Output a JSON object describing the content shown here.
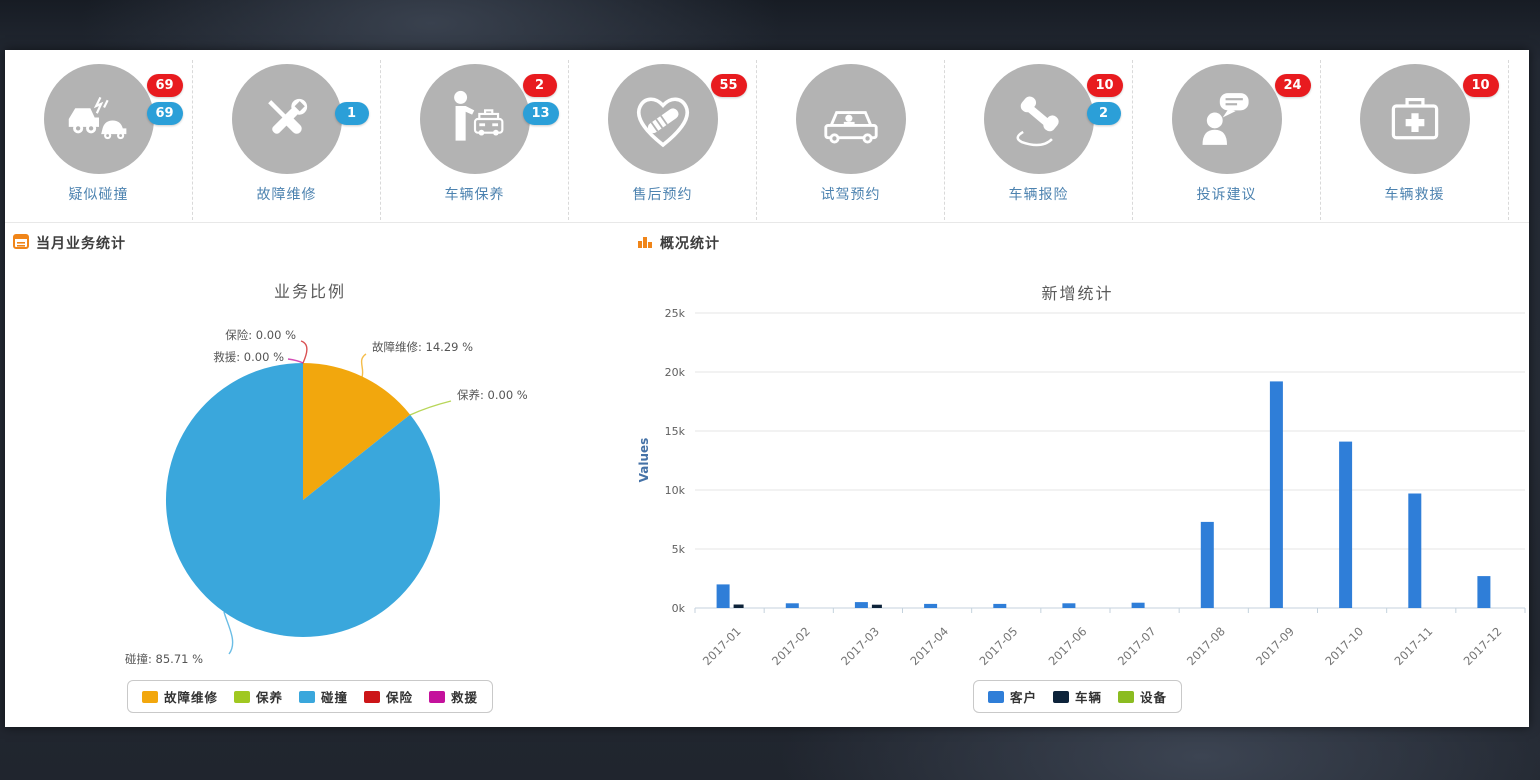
{
  "header_icons": {
    "badge_colors": {
      "red": "#e81b1f",
      "blue": "#2b9fd8"
    },
    "items": [
      {
        "name": "suspected-collision",
        "icon": "car-crash-icon",
        "label": "疑似碰撞",
        "badges": [
          {
            "value": "69",
            "type": "red",
            "row": 0
          },
          {
            "value": "69",
            "type": "blue",
            "row": 1
          }
        ]
      },
      {
        "name": "fault-repair",
        "icon": "wrench-screwdriver-icon",
        "label": "故障维修",
        "badges": [
          {
            "value": "1",
            "type": "blue",
            "row": 1
          }
        ]
      },
      {
        "name": "vehicle-maintenance",
        "icon": "person-taxi-icon",
        "label": "车辆保养",
        "badges": [
          {
            "value": "2",
            "type": "red",
            "row": 0
          },
          {
            "value": "13",
            "type": "blue",
            "row": 1
          }
        ]
      },
      {
        "name": "aftersales-appointment",
        "icon": "handshake-heart-icon",
        "label": "售后预约",
        "badges": [
          {
            "value": "55",
            "type": "red",
            "row": 0
          }
        ]
      },
      {
        "name": "testdrive-appointment",
        "icon": "car-driver-icon",
        "label": "试驾预约",
        "badges": []
      },
      {
        "name": "vehicle-insurance-report",
        "icon": "phone-handset-icon",
        "label": "车辆报险",
        "badges": [
          {
            "value": "10",
            "type": "red",
            "row": 0
          },
          {
            "value": "2",
            "type": "blue",
            "row": 1
          }
        ]
      },
      {
        "name": "complaints-suggestions",
        "icon": "person-speech-bubble-icon",
        "label": "投诉建议",
        "badges": [
          {
            "value": "24",
            "type": "red",
            "row": 0
          }
        ]
      },
      {
        "name": "vehicle-rescue",
        "icon": "first-aid-kit-icon",
        "label": "车辆救援",
        "badges": [
          {
            "value": "10",
            "type": "red",
            "row": 0
          }
        ]
      }
    ]
  },
  "left_panel": {
    "title": "当月业务统计"
  },
  "right_panel": {
    "title": "概况统计"
  },
  "chart_data": [
    {
      "type": "pie",
      "title": "业务比例",
      "legend_position": "bottom",
      "slices": [
        {
          "label": "故障维修",
          "value": 14.29,
          "color": "#f2a70d",
          "display": "故障维修: 14.29 %"
        },
        {
          "label": "保养",
          "value": 0.0,
          "color": "#a0c821",
          "display": "保养: 0.00 %"
        },
        {
          "label": "碰撞",
          "value": 85.71,
          "color": "#3aa7dc",
          "display": "碰撞: 85.71 %"
        },
        {
          "label": "保险",
          "value": 0.0,
          "color": "#cc1518",
          "display": "保险: 0.00 %"
        },
        {
          "label": "救援",
          "value": 0.0,
          "color": "#c4119c",
          "display": "救援: 0.00 %"
        }
      ],
      "legend": [
        "故障维修",
        "保养",
        "碰撞",
        "保险",
        "救援"
      ]
    },
    {
      "type": "bar",
      "title": "新增统计",
      "ylabel": "Values",
      "ylim": [
        0,
        25000
      ],
      "ytick_labels": [
        "0k",
        "5k",
        "10k",
        "15k",
        "20k",
        "25k"
      ],
      "grid": true,
      "legend_position": "bottom",
      "categories": [
        "2017-01",
        "2017-02",
        "2017-03",
        "2017-04",
        "2017-05",
        "2017-06",
        "2017-07",
        "2017-08",
        "2017-09",
        "2017-10",
        "2017-11",
        "2017-12"
      ],
      "series": [
        {
          "name": "客户",
          "color": "#2f7ed8",
          "values": [
            2000,
            400,
            500,
            350,
            350,
            400,
            450,
            7300,
            19200,
            14100,
            9700,
            2700
          ]
        },
        {
          "name": "车辆",
          "color": "#0d233a",
          "values": [
            300,
            0,
            280,
            0,
            0,
            0,
            0,
            0,
            0,
            0,
            0,
            0
          ]
        },
        {
          "name": "设备",
          "color": "#8bbc21",
          "values": [
            0,
            0,
            0,
            0,
            0,
            0,
            0,
            0,
            0,
            0,
            0,
            0
          ]
        }
      ]
    }
  ]
}
